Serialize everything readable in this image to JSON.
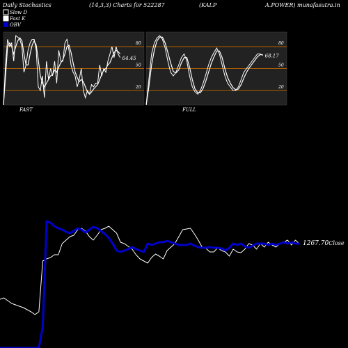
{
  "header": {
    "left": "Daily Stochastics",
    "mid": "(14,3,3) Charts for 522287",
    "right1": "(KALP",
    "right2": "A.POWER) munafasutra.in"
  },
  "legend": {
    "slow_d": "Slow  D",
    "fast_k": "Fast K",
    "obv": "OBV"
  },
  "colors": {
    "background": "#000000",
    "panel": "#222222",
    "band_line": "#b06000",
    "stoch_line": "#ffffff",
    "obv_line": "#0000cc",
    "price_line": "#ffffff"
  },
  "chart_data": [
    {
      "type": "line",
      "name": "fast-stochastics",
      "panel_label": "FAST",
      "ylim": [
        0,
        100
      ],
      "y_ticks": [
        "80",
        "50",
        "20"
      ],
      "bands": [
        80,
        50,
        20
      ],
      "last_value_label": "64.45",
      "series": [
        {
          "name": "Fast K",
          "values": [
            0,
            55,
            90,
            80,
            85,
            60,
            95,
            93,
            90,
            80,
            45,
            55,
            75,
            85,
            90,
            90,
            75,
            25,
            20,
            40,
            10,
            60,
            35,
            50,
            40,
            60,
            30,
            75,
            60,
            60,
            85,
            90,
            75,
            55,
            45,
            40,
            25,
            35,
            50,
            20,
            10,
            20,
            15,
            28,
            25,
            30,
            30,
            55,
            40,
            50,
            45,
            60,
            70,
            80,
            65,
            80,
            70,
            65
          ]
        },
        {
          "name": "Slow D",
          "values": [
            0,
            40,
            80,
            85,
            80,
            70,
            80,
            88,
            92,
            88,
            70,
            55,
            55,
            70,
            82,
            88,
            82,
            62,
            40,
            30,
            25,
            30,
            35,
            40,
            42,
            48,
            45,
            52,
            58,
            62,
            70,
            80,
            82,
            72,
            58,
            45,
            38,
            32,
            35,
            32,
            25,
            18,
            15,
            18,
            22,
            25,
            28,
            35,
            42,
            48,
            50,
            55,
            58,
            65,
            72,
            75,
            73,
            70
          ]
        }
      ]
    },
    {
      "type": "line",
      "name": "full-stochastics",
      "panel_label": "FULL",
      "ylim": [
        0,
        100
      ],
      "y_ticks": [
        "80",
        "50",
        "20"
      ],
      "bands": [
        80,
        50,
        20
      ],
      "last_value_label": "68.17",
      "series": [
        {
          "name": "Fast K",
          "values": [
            0,
            35,
            70,
            85,
            92,
            95,
            90,
            78,
            60,
            45,
            40,
            45,
            55,
            65,
            70,
            60,
            40,
            25,
            18,
            15,
            20,
            30,
            42,
            55,
            65,
            72,
            78,
            70,
            55,
            40,
            30,
            25,
            20,
            20,
            25,
            35,
            45,
            50,
            55,
            60,
            65,
            70,
            70,
            68
          ]
        },
        {
          "name": "Slow D",
          "values": [
            0,
            25,
            55,
            75,
            88,
            93,
            93,
            85,
            72,
            58,
            46,
            44,
            48,
            58,
            65,
            65,
            52,
            35,
            22,
            17,
            17,
            23,
            33,
            45,
            57,
            66,
            74,
            74,
            65,
            50,
            38,
            30,
            24,
            21,
            22,
            28,
            37,
            45,
            51,
            56,
            61,
            66,
            69,
            69
          ]
        }
      ]
    },
    {
      "type": "line",
      "name": "obv-price",
      "price_label": "1267.70",
      "close_label": "Close",
      "series": [
        {
          "name": "Price",
          "values": [
            430,
            428,
            432,
            436,
            438,
            440,
            442,
            445,
            448,
            452,
            448,
            375,
            372,
            370,
            366,
            366,
            350,
            345,
            340,
            338,
            330,
            328,
            332,
            340,
            345,
            338,
            330,
            328,
            325,
            330,
            335,
            348,
            350,
            354,
            358,
            366,
            372,
            375,
            378,
            370,
            365,
            368,
            372,
            360,
            355,
            350,
            340,
            330,
            329,
            328,
            336,
            345,
            355,
            357,
            362,
            362,
            356,
            360,
            362,
            368,
            358,
            362,
            363,
            358,
            350,
            352,
            358,
            350,
            355,
            348,
            352,
            355,
            350,
            348,
            345,
            352,
            345,
            350
          ]
        },
        {
          "name": "OBV",
          "values": [
            500,
            500,
            500,
            500,
            500,
            500,
            500,
            500,
            500,
            500,
            500,
            470,
            318,
            320,
            325,
            328,
            330,
            333,
            335,
            332,
            328,
            330,
            334,
            330,
            326,
            328,
            332,
            336,
            342,
            350,
            360,
            362,
            360,
            358,
            355,
            358,
            360,
            362,
            350,
            352,
            350,
            348,
            348,
            346,
            348,
            350,
            352,
            352,
            352,
            350,
            353,
            355,
            356,
            356,
            355,
            356,
            356,
            357,
            360,
            356,
            350,
            352,
            350,
            354,
            356,
            353,
            350,
            350,
            350,
            352,
            350,
            352,
            350,
            348,
            350,
            348,
            350,
            350
          ]
        }
      ]
    }
  ]
}
